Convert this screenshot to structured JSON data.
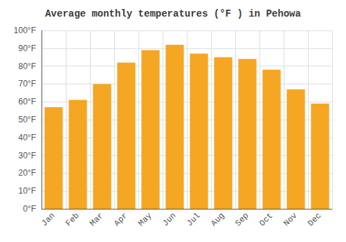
{
  "chart_data": {
    "type": "bar",
    "title": "Average monthly temperatures (°F ) in Pehowa",
    "categories": [
      "Jan",
      "Feb",
      "Mar",
      "Apr",
      "May",
      "Jun",
      "Jul",
      "Aug",
      "Sep",
      "Oct",
      "Nov",
      "Dec"
    ],
    "values": [
      57,
      61,
      70,
      82,
      89,
      92,
      87,
      85,
      84,
      78,
      67,
      59
    ],
    "color": "#F5A623",
    "ylim": [
      0,
      100
    ],
    "yticks": [
      {
        "value": 0,
        "label": "0°F"
      },
      {
        "value": 10,
        "label": "10°F"
      },
      {
        "value": 20,
        "label": "20°F"
      },
      {
        "value": 30,
        "label": "30°F"
      },
      {
        "value": 40,
        "label": "40°F"
      },
      {
        "value": 50,
        "label": "50°F"
      },
      {
        "value": 60,
        "label": "60°F"
      },
      {
        "value": 70,
        "label": "70°F"
      },
      {
        "value": 80,
        "label": "80°F"
      },
      {
        "value": 90,
        "label": "90°F"
      },
      {
        "value": 100,
        "label": "100°F"
      }
    ],
    "grid": true
  }
}
